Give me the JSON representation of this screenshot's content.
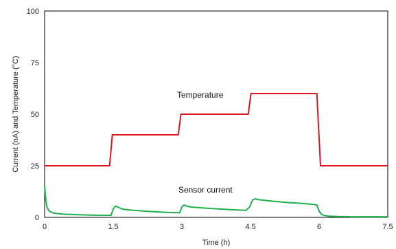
{
  "chart_data": {
    "type": "line",
    "xlabel": "Time (h)",
    "ylabel": "Current (nA) and Temperature (°C)",
    "xlim": [
      0,
      7.5
    ],
    "ylim": [
      0,
      100
    ],
    "xticks": [
      "0",
      "1.5",
      "3",
      "4.5",
      "6",
      "7.5"
    ],
    "yticks": [
      "0",
      "25",
      "50",
      "75",
      "100"
    ],
    "grid": false,
    "annotations": [
      {
        "text": "Temperature",
        "series": "temperature"
      },
      {
        "text": "Sensor current",
        "series": "current"
      }
    ],
    "series": [
      {
        "key": "temperature",
        "color": "#e0141e",
        "x": [
          0,
          1.42,
          1.48,
          2.92,
          2.98,
          4.45,
          4.51,
          5.95,
          6.03,
          7.5
        ],
        "y": [
          25,
          25,
          40,
          40,
          50,
          50,
          60,
          60,
          25,
          25
        ]
      },
      {
        "key": "current",
        "color": "#1db04b",
        "x": [
          0,
          0.02,
          0.05,
          0.1,
          0.2,
          0.4,
          0.7,
          1.0,
          1.3,
          1.45,
          1.5,
          1.55,
          1.6,
          1.7,
          1.9,
          2.2,
          2.5,
          2.8,
          2.95,
          3.0,
          3.05,
          3.1,
          3.2,
          3.5,
          3.8,
          4.1,
          4.4,
          4.48,
          4.55,
          4.6,
          4.7,
          5.0,
          5.3,
          5.6,
          5.9,
          5.95,
          6.0,
          6.05,
          6.1,
          6.2,
          6.4,
          6.7,
          7.0,
          7.5
        ],
        "y": [
          15.5,
          10,
          5,
          3,
          2,
          1.6,
          1.3,
          1.1,
          1.0,
          1.0,
          4,
          5.5,
          5,
          4,
          3.5,
          3,
          2.6,
          2.3,
          2.2,
          5,
          6,
          5.5,
          5,
          4.5,
          4.1,
          3.7,
          3.4,
          5,
          8.5,
          9,
          8.5,
          7.8,
          7.2,
          6.8,
          6.2,
          6,
          3,
          1.5,
          1.0,
          0.6,
          0.4,
          0.3,
          0.3,
          0.3
        ]
      }
    ]
  }
}
